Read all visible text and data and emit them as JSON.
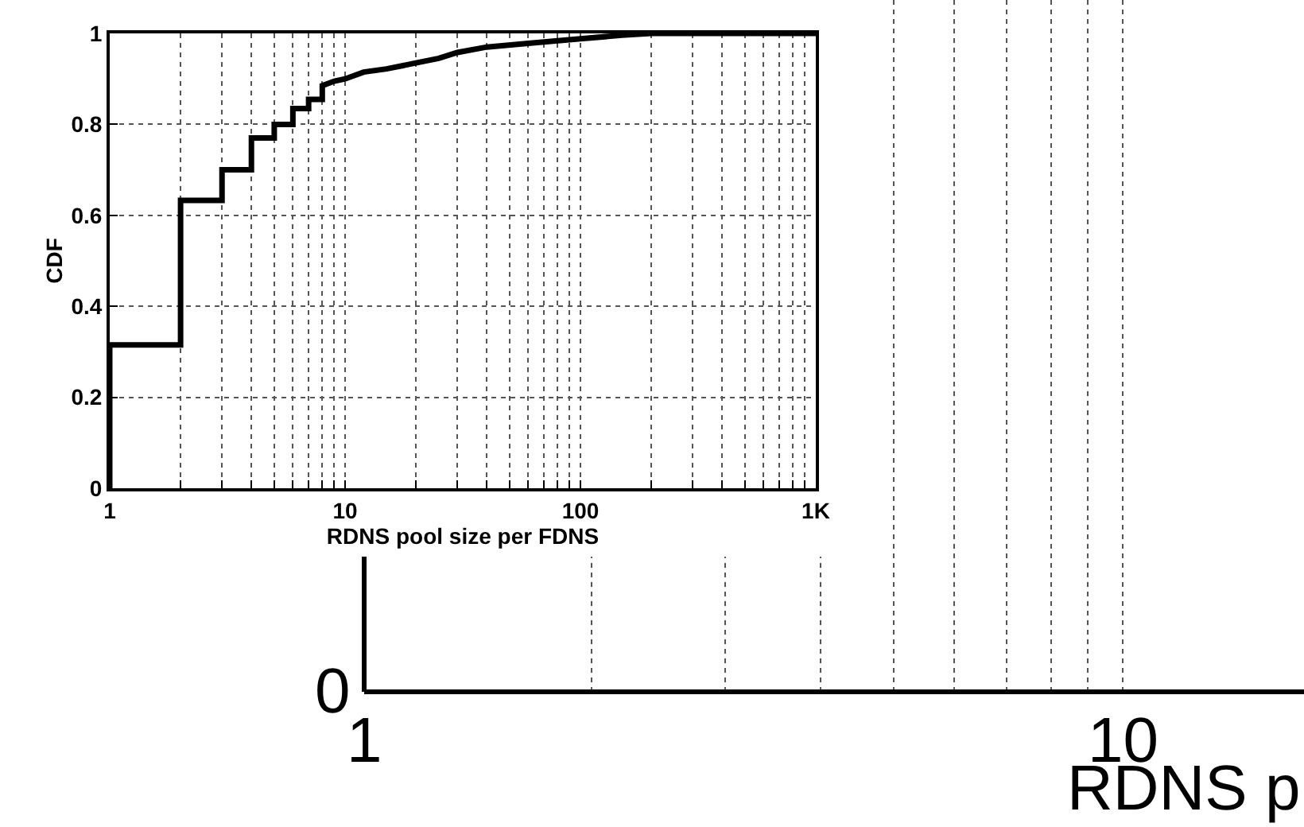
{
  "chart_data": [
    {
      "type": "other",
      "xlabel": "RDNS p",
      "annotations": [
        "0",
        "1",
        "10"
      ]
    },
    {
      "type": "line",
      "xlabel": "RDNS pool size per FDNS",
      "ylabel": "CDF",
      "log": "x",
      "grid": true,
      "xlim": [
        1,
        1000
      ],
      "ylim": [
        0,
        1
      ],
      "xticks": [
        1,
        {
          "value": 2,
          "label": null
        },
        {
          "value": 3,
          "label": null
        },
        {
          "value": 4,
          "label": null
        },
        {
          "value": 5,
          "label": null
        },
        {
          "value": 6,
          "label": null
        },
        {
          "value": 7,
          "label": null
        },
        {
          "value": 8,
          "label": null
        },
        {
          "value": 9,
          "label": null
        },
        10,
        {
          "value": 20,
          "label": null
        },
        {
          "value": 30,
          "label": null
        },
        {
          "value": 40,
          "label": null
        },
        {
          "value": 50,
          "label": null
        },
        {
          "value": 60,
          "label": null
        },
        {
          "value": 70,
          "label": null
        },
        {
          "value": 80,
          "label": null
        },
        {
          "value": 90,
          "label": null
        },
        100,
        {
          "value": 200,
          "label": null
        },
        {
          "value": 300,
          "label": null
        },
        {
          "value": 400,
          "label": null
        },
        {
          "value": 500,
          "label": null
        },
        {
          "value": 600,
          "label": null
        },
        {
          "value": 700,
          "label": null
        },
        {
          "value": 800,
          "label": null
        },
        {
          "value": 900,
          "label": null
        },
        {
          "value": 1000,
          "label": "1K"
        }
      ],
      "yticks": [
        0,
        0.2,
        0.4,
        0.6,
        0.8,
        1
      ],
      "series": [
        {
          "color": "#000000",
          "x": [
            1,
            1,
            2,
            2,
            3,
            3,
            4,
            4,
            5,
            5,
            6,
            6,
            7,
            7,
            8,
            8,
            9,
            10,
            12,
            15,
            20,
            25,
            30,
            40,
            60,
            100,
            150,
            200,
            1000
          ],
          "values": [
            0,
            0.315,
            0.315,
            0.633,
            0.633,
            0.7,
            0.7,
            0.77,
            0.77,
            0.8,
            0.8,
            0.835,
            0.835,
            0.855,
            0.855,
            0.885,
            0.895,
            0.9,
            0.915,
            0.922,
            0.935,
            0.945,
            0.958,
            0.97,
            0.978,
            0.988,
            0.996,
            1.0,
            1.0
          ]
        }
      ]
    }
  ]
}
